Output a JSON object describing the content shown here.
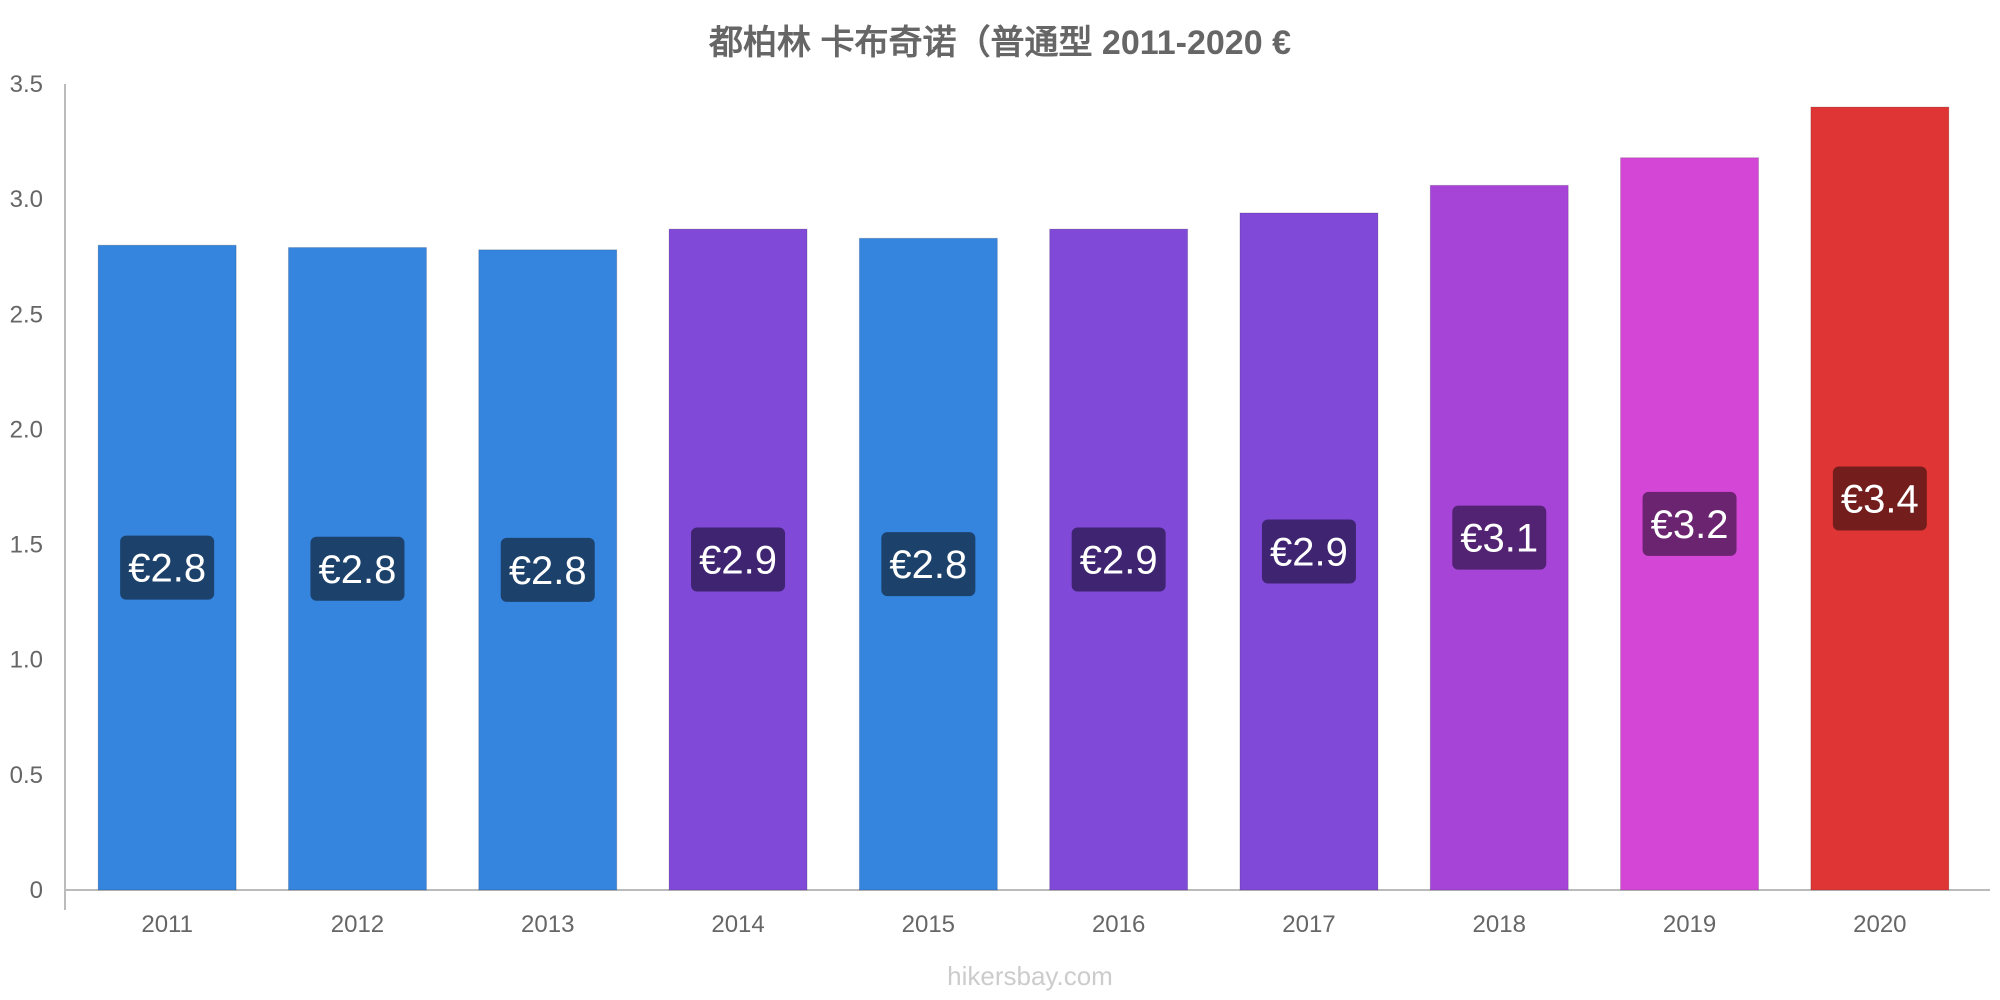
{
  "chart_data": {
    "type": "bar",
    "title": "都柏林 卡布奇诺（普通型 2011-2020 €",
    "xlabel": "",
    "ylabel": "",
    "categories": [
      "2011",
      "2012",
      "2013",
      "2014",
      "2015",
      "2016",
      "2017",
      "2018",
      "2019",
      "2020"
    ],
    "values": [
      2.8,
      2.79,
      2.78,
      2.87,
      2.83,
      2.87,
      2.94,
      3.06,
      3.18,
      3.4
    ],
    "data_labels": [
      "€2.8",
      "€2.8",
      "€2.8",
      "€2.9",
      "€2.8",
      "€2.9",
      "€2.9",
      "€3.1",
      "€3.2",
      "€3.4"
    ],
    "bar_colors": [
      "#3584de",
      "#3584de",
      "#3584de",
      "#8149d8",
      "#3584de",
      "#8149d8",
      "#8149d8",
      "#a644d8",
      "#d447d6",
      "#e03535"
    ],
    "label_bg_colors": [
      "#1c416b",
      "#1c416b",
      "#1c416b",
      "#3f2471",
      "#1c416b",
      "#3f2471",
      "#3f2471",
      "#532373",
      "#6b2470",
      "#731d1d"
    ],
    "ylim": [
      0,
      3.5
    ],
    "yticks": [
      0,
      0.5,
      1.0,
      1.5,
      2.0,
      2.5,
      3.0,
      3.5
    ],
    "ytick_labels": [
      "0",
      "0.5",
      "1.0",
      "1.5",
      "2.0",
      "2.5",
      "3.0",
      "3.5"
    ],
    "grid": false,
    "legend": "none"
  },
  "watermark": "hikersbay.com"
}
